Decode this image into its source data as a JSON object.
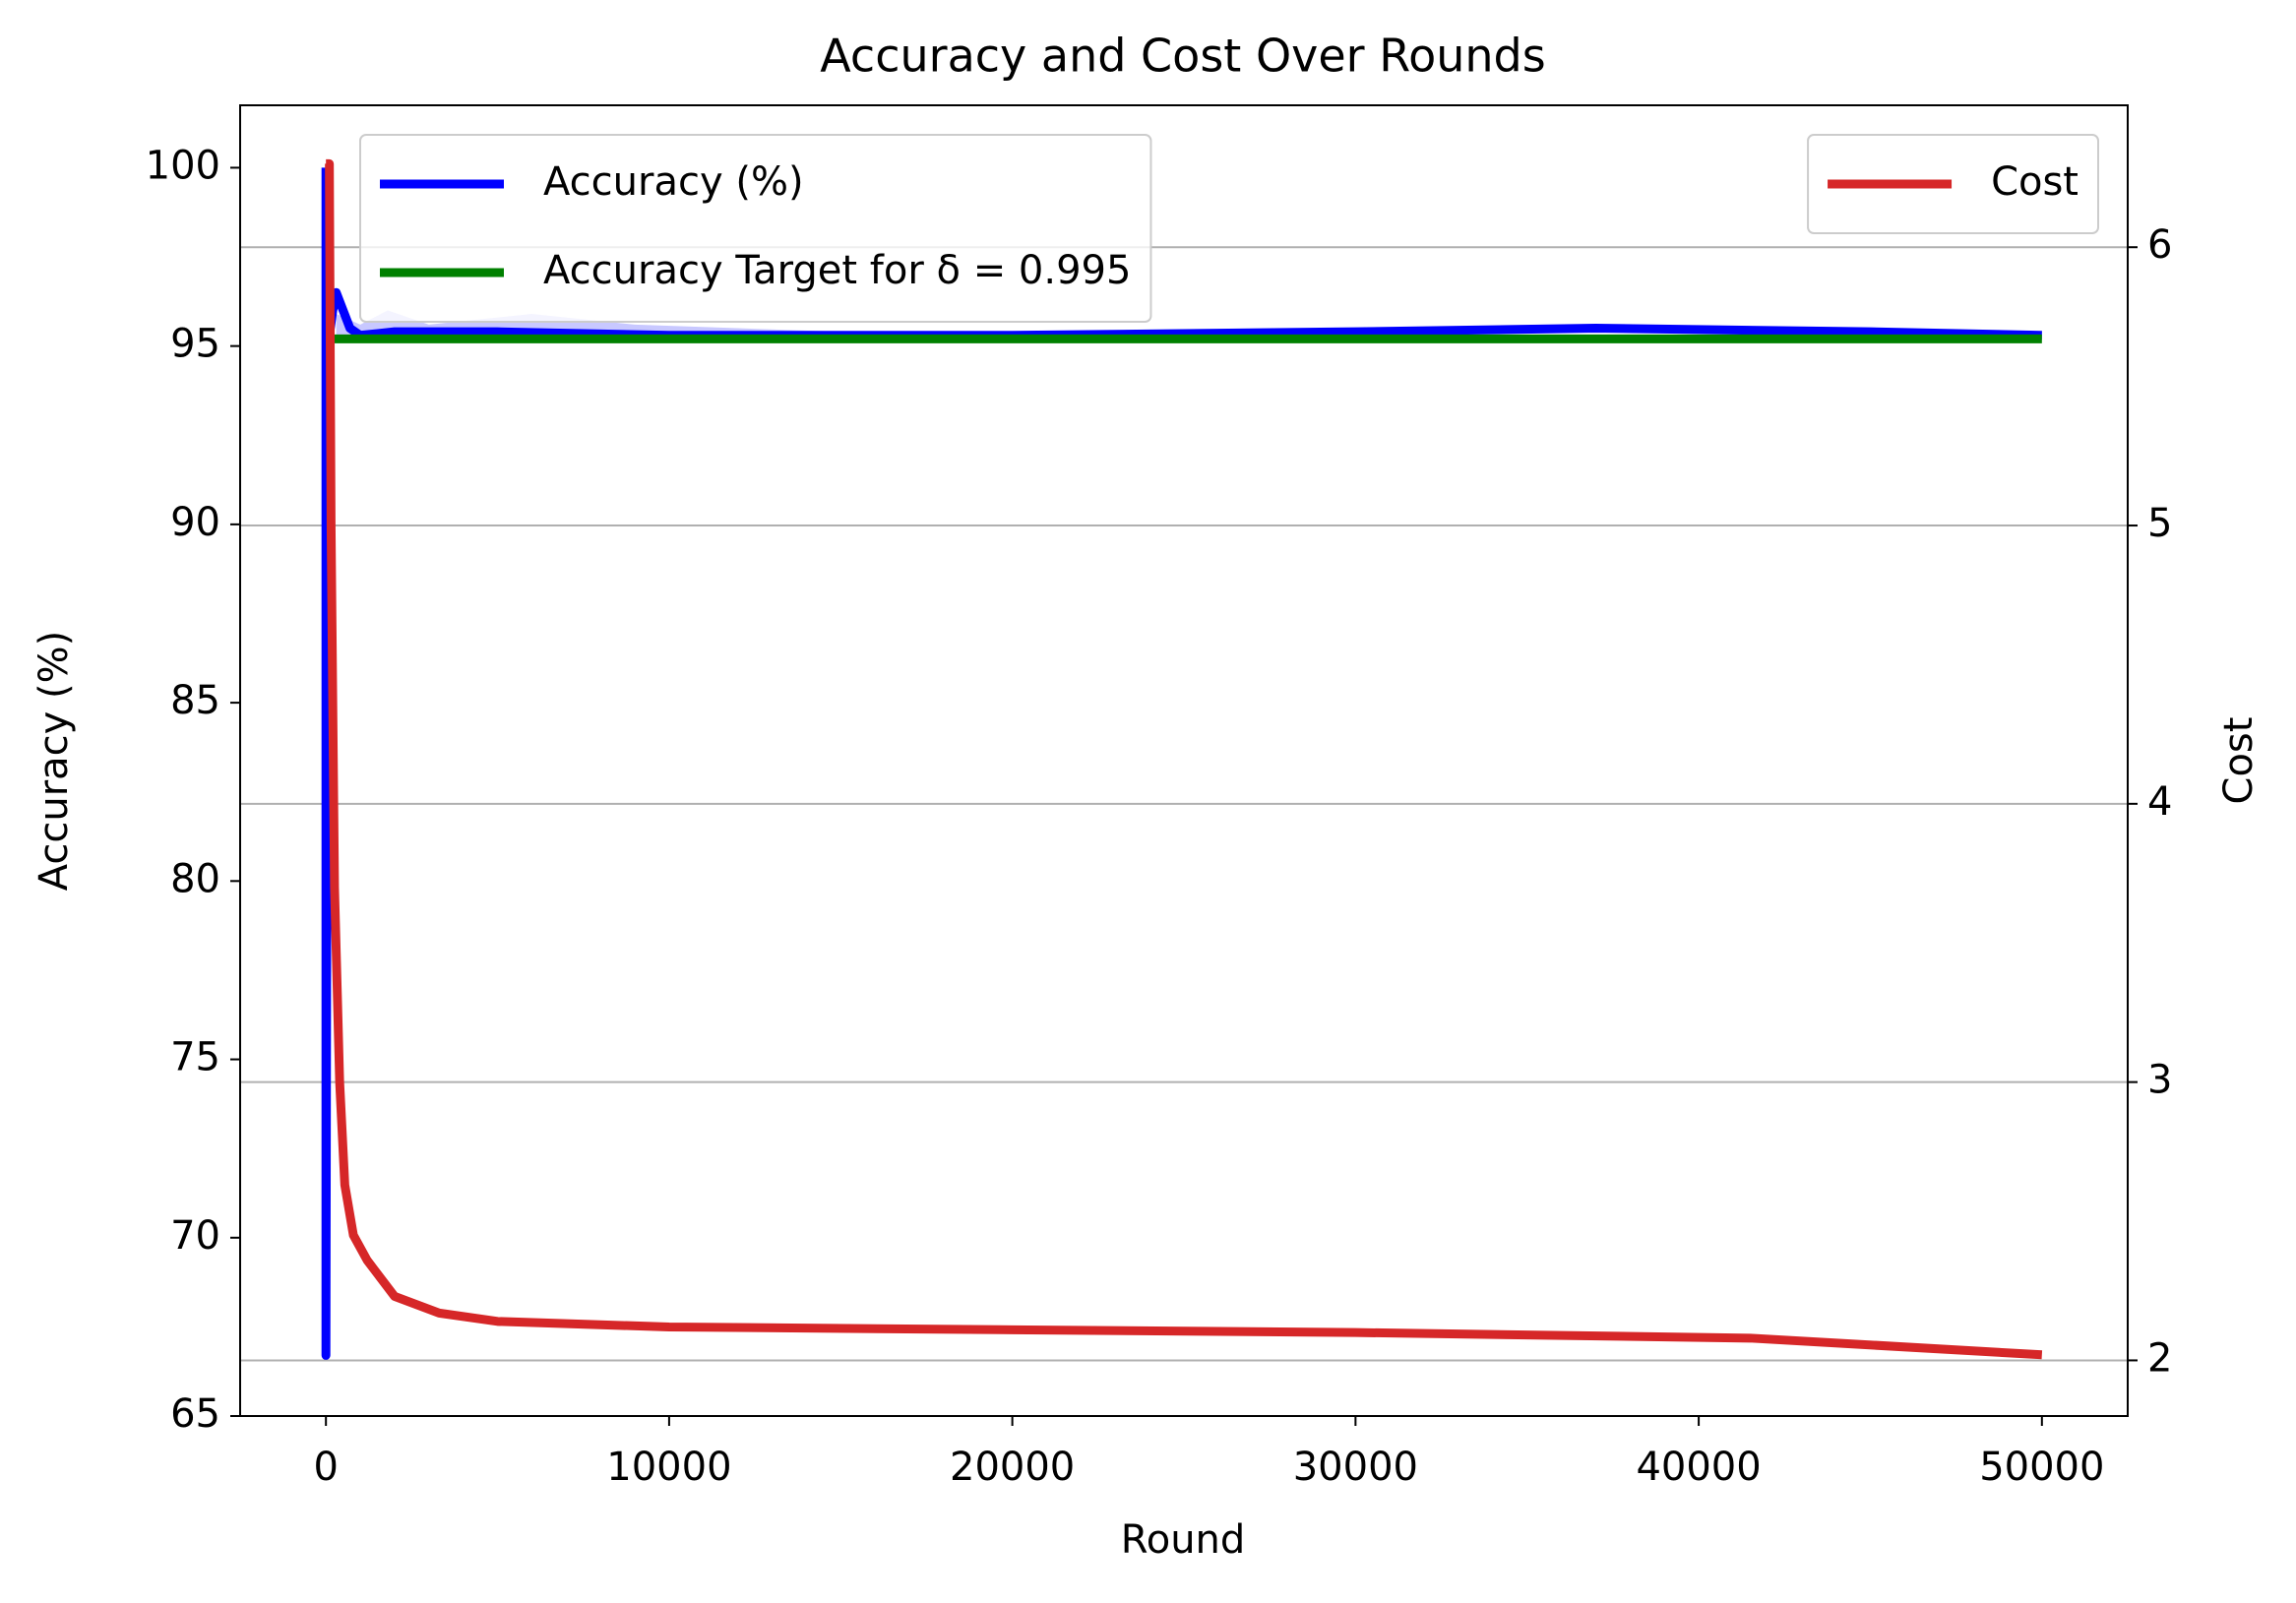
{
  "chart_data": {
    "type": "line",
    "title": "Accuracy and Cost Over Rounds",
    "x_label": "Round",
    "y_label": "Accuracy (%)",
    "y2_label": "Cost",
    "xlim": [
      -2500,
      52500
    ],
    "xticks": [
      0,
      10000,
      20000,
      30000,
      40000,
      50000
    ],
    "ylim": [
      65,
      101.75
    ],
    "yticks": [
      65,
      70,
      75,
      80,
      85,
      90,
      95,
      100
    ],
    "y2lim": [
      1.8,
      6.51
    ],
    "y2ticks": [
      2,
      3,
      4,
      5,
      6
    ],
    "grid": "y2",
    "y_color": "#0000ff",
    "y2_color": "#d62728",
    "legend": {
      "y": "upper left",
      "y2": "upper right"
    },
    "band": {
      "color": "#c8c8ff",
      "x": [
        300,
        1000,
        1800,
        3000,
        6000,
        9000,
        12000,
        15000
      ],
      "upper": [
        95.9,
        95.6,
        96.0,
        95.6,
        95.9,
        95.6,
        95.5,
        95.4
      ],
      "lower": [
        95.3,
        95.3,
        95.3,
        95.3,
        95.3,
        95.3,
        95.3,
        95.3
      ]
    },
    "series": [
      {
        "name": "Accuracy (%)",
        "color": "#0000ff",
        "axis": "y",
        "x": [
          0,
          0,
          50,
          100,
          200,
          300,
          500,
          700,
          1000,
          2000,
          5000,
          10000,
          20000,
          30000,
          37000,
          45000,
          50000
        ],
        "values": [
          100,
          66.7,
          92,
          95.3,
          96,
          96.5,
          96.0,
          95.5,
          95.3,
          95.4,
          95.4,
          95.3,
          95.3,
          95.4,
          95.5,
          95.4,
          95.3
        ]
      },
      {
        "name": "Accuracy Target for δ = 0.995",
        "color": "#008000",
        "axis": "y",
        "x": [
          0,
          50000
        ],
        "values": [
          95.2,
          95.2
        ]
      },
      {
        "name": "Cost",
        "color": "#d62728",
        "axis": "y2",
        "x": [
          0,
          100,
          150,
          250,
          400,
          550,
          800,
          1200,
          2000,
          3300,
          5000,
          10000,
          20000,
          30000,
          41500,
          50000
        ],
        "values": [
          6.3,
          6.3,
          5.0,
          3.7,
          3.0,
          2.63,
          2.45,
          2.36,
          2.23,
          2.17,
          2.14,
          2.12,
          2.11,
          2.1,
          2.08,
          2.02
        ]
      }
    ]
  }
}
